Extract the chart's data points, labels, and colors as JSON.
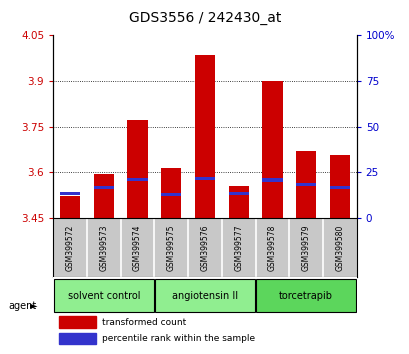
{
  "title": "GDS3556 / 242430_at",
  "samples": [
    "GSM399572",
    "GSM399573",
    "GSM399574",
    "GSM399575",
    "GSM399576",
    "GSM399577",
    "GSM399578",
    "GSM399579",
    "GSM399580"
  ],
  "transformed_counts": [
    3.52,
    3.595,
    3.77,
    3.615,
    3.985,
    3.555,
    3.9,
    3.67,
    3.655
  ],
  "percentile_tops": [
    3.53,
    3.548,
    3.575,
    3.525,
    3.58,
    3.528,
    3.574,
    3.558,
    3.548
  ],
  "ymin": 3.45,
  "ymax": 4.05,
  "yticks_left": [
    3.45,
    3.6,
    3.75,
    3.9,
    4.05
  ],
  "right_yticks": [
    0,
    25,
    50,
    75,
    100
  ],
  "group_configs": [
    {
      "label": "solvent control",
      "indices": [
        0,
        1,
        2
      ],
      "color": "#90EE90"
    },
    {
      "label": "angiotensin II",
      "indices": [
        3,
        4,
        5
      ],
      "color": "#90EE90"
    },
    {
      "label": "torcetrapib",
      "indices": [
        6,
        7,
        8
      ],
      "color": "#5CD65C"
    }
  ],
  "bar_color": "#CC0000",
  "blue_color": "#3333CC",
  "bar_width": 0.6,
  "title_fontsize": 10,
  "tick_fontsize": 7.5,
  "left_tick_color": "#CC0000",
  "right_tick_color": "#0000CC",
  "legend_items": [
    "transformed count",
    "percentile rank within the sample"
  ],
  "background_color": "#FFFFFF",
  "plot_bg_color": "#FFFFFF",
  "sample_bg_color": "#C8C8C8",
  "agent_label": "agent"
}
